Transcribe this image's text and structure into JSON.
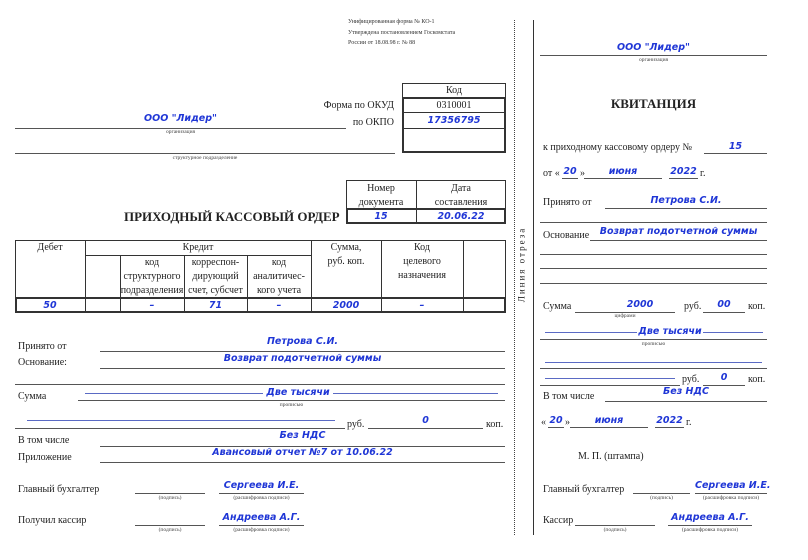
{
  "header_note": [
    "Унифицированная форма № КО-1",
    "Утверждена постановлением Госкомстата",
    "России от 18.08.98 г. № 88"
  ],
  "order": {
    "code_header": "Код",
    "okud_label": "Форма по ОКУД",
    "okud_code": "0310001",
    "okpo_label": "по ОКПО",
    "okpo_code": "17356795",
    "org_value": "ООО \"Лидер\"",
    "org_caption": "организация",
    "division_caption": "структурное подразделение",
    "doc_number_header": [
      "Номер",
      "документа"
    ],
    "doc_date_header": [
      "Дата",
      "составления"
    ],
    "doc_number": "15",
    "doc_date": "20.06.22",
    "title": "ПРИХОДНЫЙ КАССОВЫЙ ОРДЕР"
  },
  "table": {
    "debit": "Дебет",
    "credit": "Кредит",
    "credit_sub": [
      [
        "код",
        "структурного",
        "подразделения"
      ],
      [
        "корреспон-",
        "дирующий",
        "счет, субсчет"
      ],
      [
        "код",
        "аналитичес-",
        "кого учета"
      ]
    ],
    "sum": [
      "Сумма,",
      "руб. коп."
    ],
    "purpose_code": [
      "Код",
      "целевого",
      "назначения"
    ],
    "row": [
      "50",
      "",
      "–",
      "71",
      "–",
      "2000",
      "–",
      ""
    ]
  },
  "fields": {
    "received_from_label": "Принято от",
    "received_from": "Петрова С.И.",
    "basis_label": "Основание:",
    "basis": "Возврат подотчетной суммы",
    "sum_label": "Сумма",
    "sum_words": "Две тысячи",
    "in_words_caption": "прописью",
    "rub_label": "руб.",
    "kop_value": "0",
    "kop_label": "коп.",
    "vat_label": "В том числе",
    "vat": "Без НДС",
    "attachment_label": "Приложение",
    "attachment": "Авансовый отчет №7 от 10.06.22",
    "chief_accountant_label": "Главный бухгалтер",
    "chief_accountant": "Сергеева И.Е.",
    "cashier_label": "Получил кассир",
    "cashier": "Андреева А.Г.",
    "signature_caption": "(подпись)",
    "name_caption": "(расшифровка подписи)"
  },
  "cut_line_label": "Линия отреза",
  "receipt": {
    "org_value": "ООО \"Лидер\"",
    "org_caption": "организация",
    "title": "КВИТАНЦИЯ",
    "order_ref_label": "к приходному кассовому ордеру №",
    "order_number": "15",
    "from_label": "от «",
    "day": "20",
    "quote_close": "»",
    "month": "июня",
    "year": "2022",
    "year_suffix": "г.",
    "received_from_label": "Принято от",
    "received_from": "Петрова С.И.",
    "basis_label": "Основание",
    "basis": "Возврат подотчетной суммы",
    "sum_label": "Сумма",
    "sum_digits": "2000",
    "digits_caption": "цифрами",
    "rub_label": "руб.",
    "kop_digits": "00",
    "kop_label": "коп.",
    "sum_words": "Две тысячи",
    "in_words_caption": "прописью",
    "kop_value": "0",
    "vat_label": "В том числе",
    "vat": "Без НДС",
    "date_open": "«",
    "stamp_label": "М. П. (штампа)",
    "chief_accountant_label": "Главный бухгалтер",
    "chief_accountant": "Сергеева И.Е.",
    "cashier_label": "Кассир",
    "cashier": "Андреева А.Г.",
    "signature_caption": "(подпись)",
    "name_caption": "(расшифровка подписи)"
  },
  "colors": {
    "ink": "#1f36d6",
    "text": "#222222"
  }
}
